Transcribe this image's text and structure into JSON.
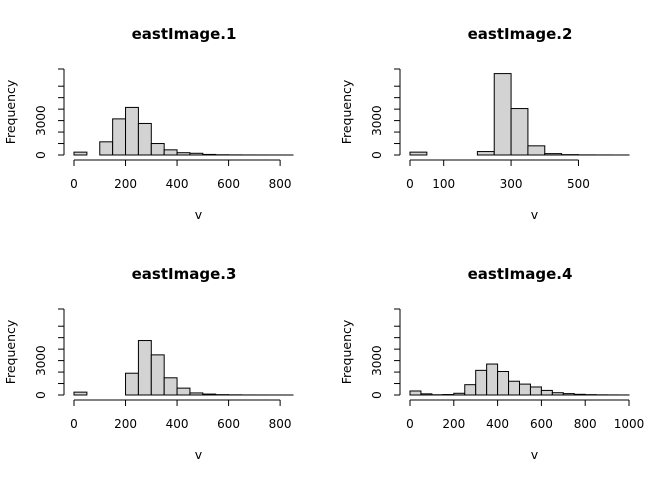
{
  "chart_data": [
    {
      "type": "bar",
      "title": "eastImage.1",
      "xlabel": "v",
      "ylabel": "Frequency",
      "bin_width": 50,
      "bins_start": 0,
      "values": [
        250,
        0,
        1150,
        3150,
        4150,
        2750,
        1000,
        450,
        200,
        150,
        50,
        20,
        10,
        5,
        3,
        2,
        1
      ],
      "xticks": [
        0,
        200,
        400,
        600,
        800
      ],
      "yticks": [
        0,
        3000
      ],
      "ylim": [
        0,
        7500
      ]
    },
    {
      "type": "bar",
      "title": "eastImage.2",
      "xlabel": "v",
      "ylabel": "Frequency",
      "bin_width": 50,
      "bins_start": 0,
      "values": [
        250,
        0,
        0,
        0,
        300,
        7100,
        4050,
        800,
        120,
        30,
        10,
        5,
        2
      ],
      "xticks": [
        0,
        100,
        300,
        500
      ],
      "yticks": [
        0,
        3000
      ],
      "ylim": [
        0,
        7500
      ]
    },
    {
      "type": "bar",
      "title": "eastImage.3",
      "xlabel": "v",
      "ylabel": "Frequency",
      "bin_width": 50,
      "bins_start": 0,
      "values": [
        250,
        0,
        0,
        0,
        1900,
        4750,
        3500,
        1500,
        600,
        180,
        80,
        30,
        15,
        5,
        3,
        2,
        1
      ],
      "xticks": [
        0,
        200,
        400,
        600,
        800
      ],
      "yticks": [
        0,
        3000
      ],
      "ylim": [
        0,
        7500
      ]
    },
    {
      "type": "bar",
      "title": "eastImage.4",
      "xlabel": "v",
      "ylabel": "Frequency",
      "bin_width": 50,
      "bins_start": 0,
      "values": [
        350,
        100,
        20,
        40,
        150,
        900,
        2150,
        2700,
        2050,
        1200,
        950,
        700,
        400,
        200,
        120,
        60,
        30,
        15,
        8,
        4
      ],
      "xticks": [
        0,
        200,
        400,
        600,
        800,
        1000
      ],
      "yticks": [
        0,
        3000
      ],
      "ylim": [
        0,
        7500
      ]
    }
  ]
}
